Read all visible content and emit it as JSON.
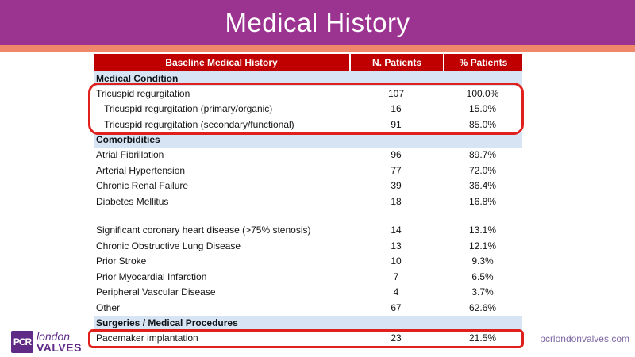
{
  "slide": {
    "title": "Medical History",
    "footer_url": "pcrlondonvalves.com",
    "logo": {
      "square": "PCR",
      "line1": "london",
      "line2": "VALVES"
    }
  },
  "table": {
    "headers": [
      "Baseline Medical History",
      "N. Patients",
      "% Patients"
    ],
    "rows": [
      {
        "type": "section",
        "label": "Medical Condition"
      },
      {
        "type": "data",
        "label": "Tricuspid regurgitation",
        "n": "107",
        "pct": "100.0%",
        "indent": 0
      },
      {
        "type": "data",
        "label": "Tricuspid regurgitation (primary/organic)",
        "n": "16",
        "pct": "15.0%",
        "indent": 1
      },
      {
        "type": "data",
        "label": "Tricuspid regurgitation (secondary/functional)",
        "n": "91",
        "pct": "85.0%",
        "indent": 1
      },
      {
        "type": "section",
        "label": "Comorbidities"
      },
      {
        "type": "data",
        "label": "Atrial Fibrillation",
        "n": "96",
        "pct": "89.7%",
        "indent": 0
      },
      {
        "type": "data",
        "label": "Arterial Hypertension",
        "n": "77",
        "pct": "72.0%",
        "indent": 0
      },
      {
        "type": "data",
        "label": "Chronic Renal Failure",
        "n": "39",
        "pct": "36.4%",
        "indent": 0
      },
      {
        "type": "data",
        "label": "Diabetes Mellitus",
        "n": "18",
        "pct": "16.8%",
        "indent": 0
      },
      {
        "type": "blank"
      },
      {
        "type": "data",
        "label": "Significant coronary heart disease (>75% stenosis)",
        "n": "14",
        "pct": "13.1%",
        "indent": 0
      },
      {
        "type": "data",
        "label": "Chronic Obstructive Lung Disease",
        "n": "13",
        "pct": "12.1%",
        "indent": 0
      },
      {
        "type": "data",
        "label": "Prior Stroke",
        "n": "10",
        "pct": "9.3%",
        "indent": 0
      },
      {
        "type": "data",
        "label": "Prior Myocardial Infarction",
        "n": "7",
        "pct": "6.5%",
        "indent": 0
      },
      {
        "type": "data",
        "label": "Peripheral Vascular Disease",
        "n": "4",
        "pct": "3.7%",
        "indent": 0
      },
      {
        "type": "data",
        "label": "Other",
        "n": "67",
        "pct": "62.6%",
        "indent": 0
      },
      {
        "type": "section",
        "label": "Surgeries / Medical Procedures"
      },
      {
        "type": "data",
        "label": "Pacemaker implantation",
        "n": "23",
        "pct": "21.5%",
        "indent": 0
      }
    ],
    "highlighted_groups": [
      "Tricuspid regurgitation rows (107 / 16 / 91)",
      "Pacemaker implantation row (23, 21.5%)"
    ]
  },
  "colors": {
    "title_bar": "#9B3490",
    "accent_strip": "#F0876B",
    "table_header_bg": "#C00000",
    "section_bg": "#D7E4F3",
    "highlight_border": "#E0201C",
    "logo_purple": "#5F2B87",
    "url_text": "#7C68A4"
  }
}
